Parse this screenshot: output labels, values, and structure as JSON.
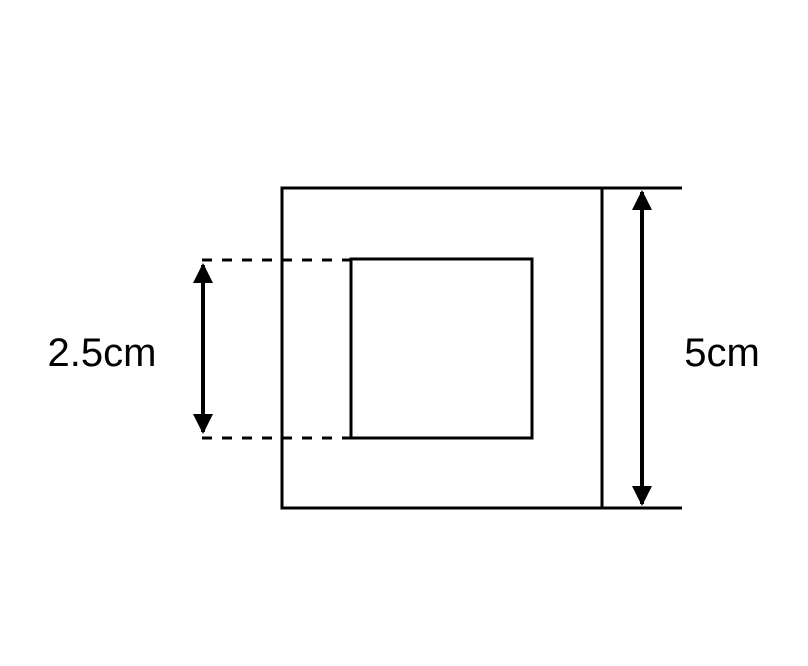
{
  "diagram": {
    "inner_dimension_label": "2.5cm",
    "outer_dimension_label": "5cm",
    "stroke_color": "#000000",
    "background_color": "#ffffff"
  }
}
